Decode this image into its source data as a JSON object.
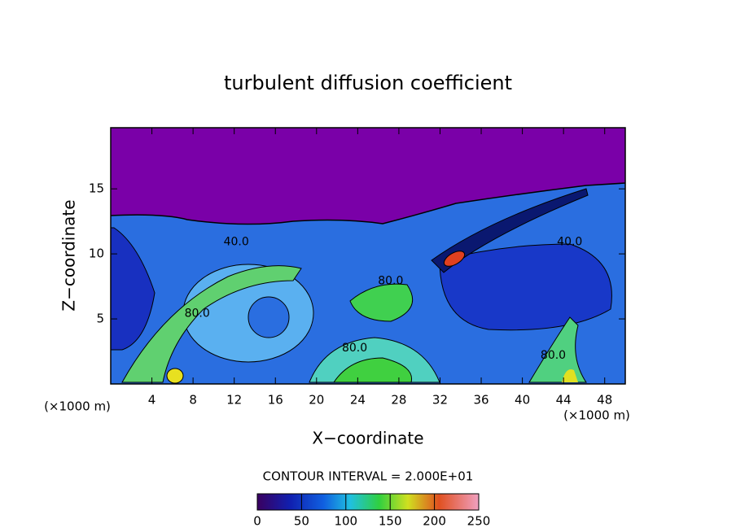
{
  "chart_data": {
    "type": "contour",
    "title": "turbulent diffusion coefficient",
    "xlabel": "X−coordinate",
    "ylabel": "Z−coordinate",
    "x_unit_left": "(×1000 m)",
    "x_unit_right": "(×1000 m)",
    "xlim": [
      0,
      50
    ],
    "ylim": [
      0,
      19.7
    ],
    "xticks": [
      4,
      8,
      12,
      16,
      20,
      24,
      28,
      32,
      36,
      40,
      44,
      48
    ],
    "yticks": [
      5,
      10,
      15
    ],
    "contour_interval_text": "CONTOUR INTERVAL = 2.000E+01",
    "clim": [
      0,
      250
    ],
    "cticks": [
      0,
      50,
      100,
      150,
      200,
      250
    ],
    "contour_labels": [
      {
        "value": 40,
        "label": "40.0",
        "x": 12.2,
        "y": 10.9
      },
      {
        "value": 40,
        "label": "40.0",
        "x": 44.6,
        "y": 10.9
      },
      {
        "value": 80,
        "label": "80.0",
        "x": 27.2,
        "y": 7.9
      },
      {
        "value": 80,
        "label": "80.0",
        "x": 8.4,
        "y": 5.4
      },
      {
        "value": 80,
        "label": "80.0",
        "x": 23.7,
        "y": 2.75
      },
      {
        "value": 80,
        "label": "80.0",
        "x": 43.0,
        "y": 2.2
      }
    ]
  }
}
